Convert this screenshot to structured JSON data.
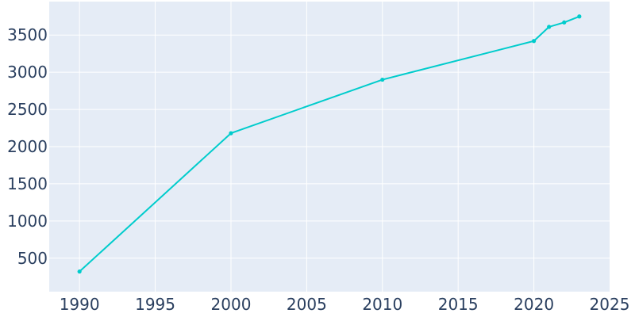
{
  "chart_data": {
    "type": "line",
    "title": "",
    "xlabel": "",
    "ylabel": "",
    "x": [
      1990,
      2000,
      2010,
      2020,
      2021,
      2022,
      2023
    ],
    "series": [
      {
        "values": [
          320,
          2180,
          2900,
          3420,
          3610,
          3670,
          3750
        ]
      }
    ],
    "xlim": [
      1988,
      2025
    ],
    "ylim": [
      50,
      3950
    ],
    "x_ticks": [
      1990,
      1995,
      2000,
      2005,
      2010,
      2015,
      2020,
      2025
    ],
    "y_ticks": [
      500,
      1000,
      1500,
      2000,
      2500,
      3000,
      3500
    ],
    "grid": true,
    "legend": "none",
    "colors": {
      "line": "#00cccc",
      "plot_bg": "#e5ecf6",
      "grid": "#ffffff",
      "text": "#2a3f5f"
    }
  }
}
